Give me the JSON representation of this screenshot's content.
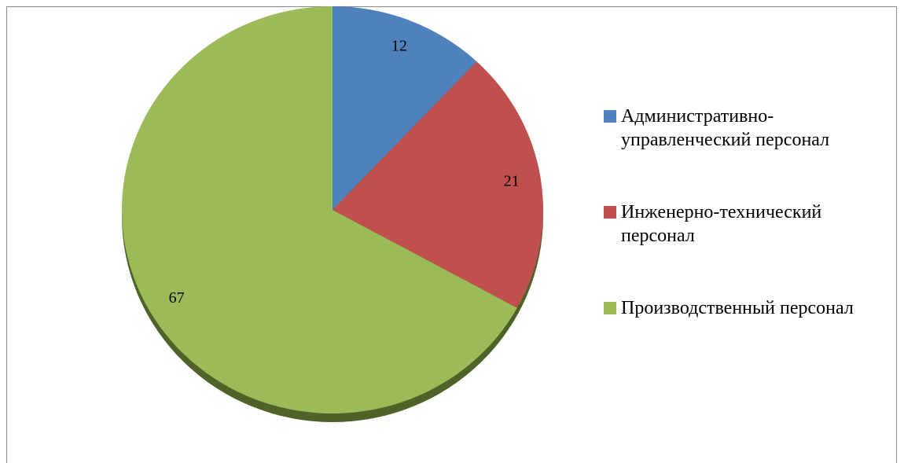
{
  "chart_data": {
    "type": "pie",
    "categories": [
      "Административно-управленческий персонал",
      "Инженерно-технический персонал",
      "Производственный персонал"
    ],
    "values": [
      12,
      21,
      67
    ],
    "colors": [
      "#4f81bd",
      "#c0504d",
      "#9bbb59"
    ],
    "legend": "right"
  }
}
